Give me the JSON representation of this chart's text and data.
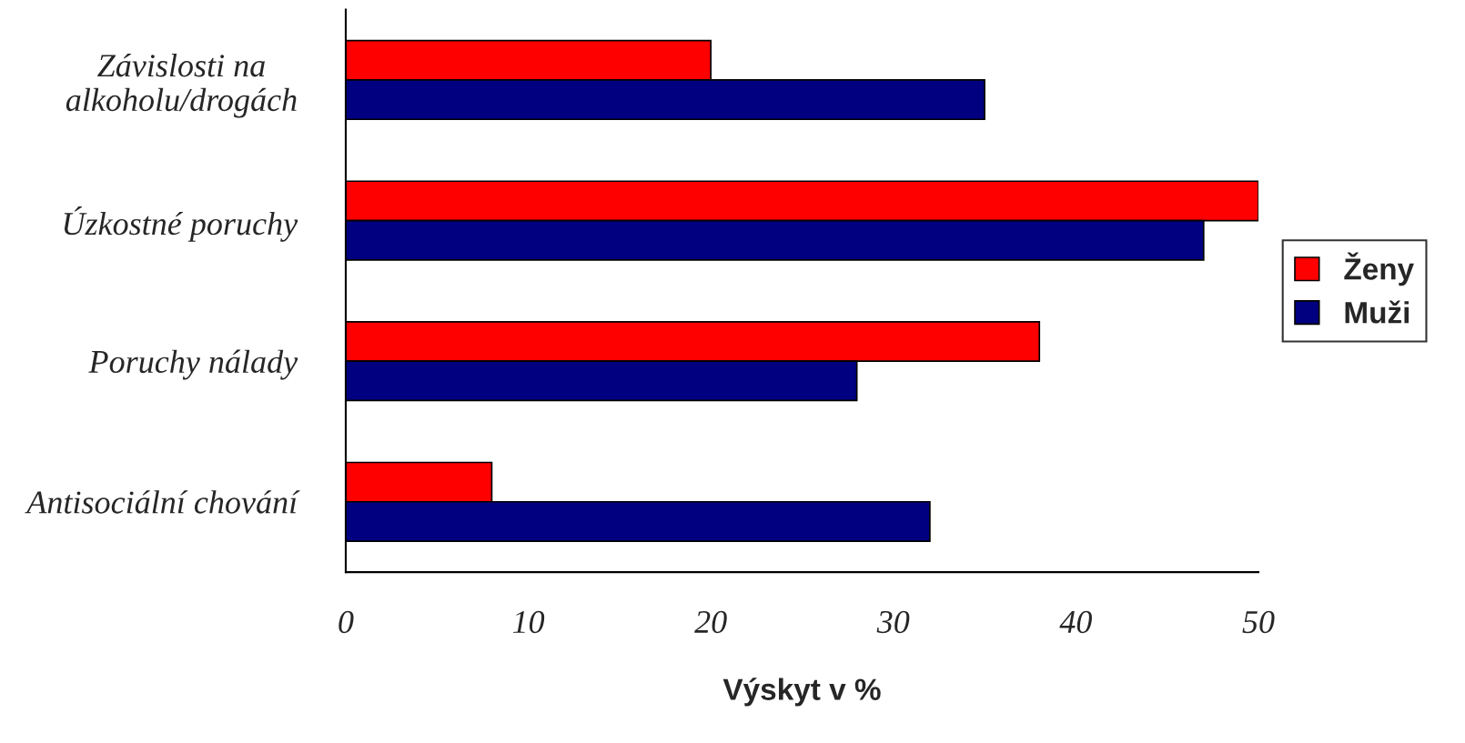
{
  "chart_data": {
    "type": "bar",
    "orientation": "horizontal",
    "xlabel": "Výskyt v %",
    "categories": [
      "Závislosti na\nalkoholu/drogách",
      "Úzkostné poruchy",
      "Poruchy nálady",
      "Antisociální chování"
    ],
    "series": [
      {
        "name": "Ženy",
        "color": "#ff0000",
        "values": [
          20,
          50,
          38,
          8
        ]
      },
      {
        "name": "Muži",
        "color": "#000080",
        "values": [
          35,
          47,
          28,
          32
        ]
      }
    ],
    "xlim": [
      0,
      50
    ],
    "xticks": [
      0,
      10,
      20,
      30,
      40,
      50
    ],
    "grid": false,
    "legend": "right"
  }
}
